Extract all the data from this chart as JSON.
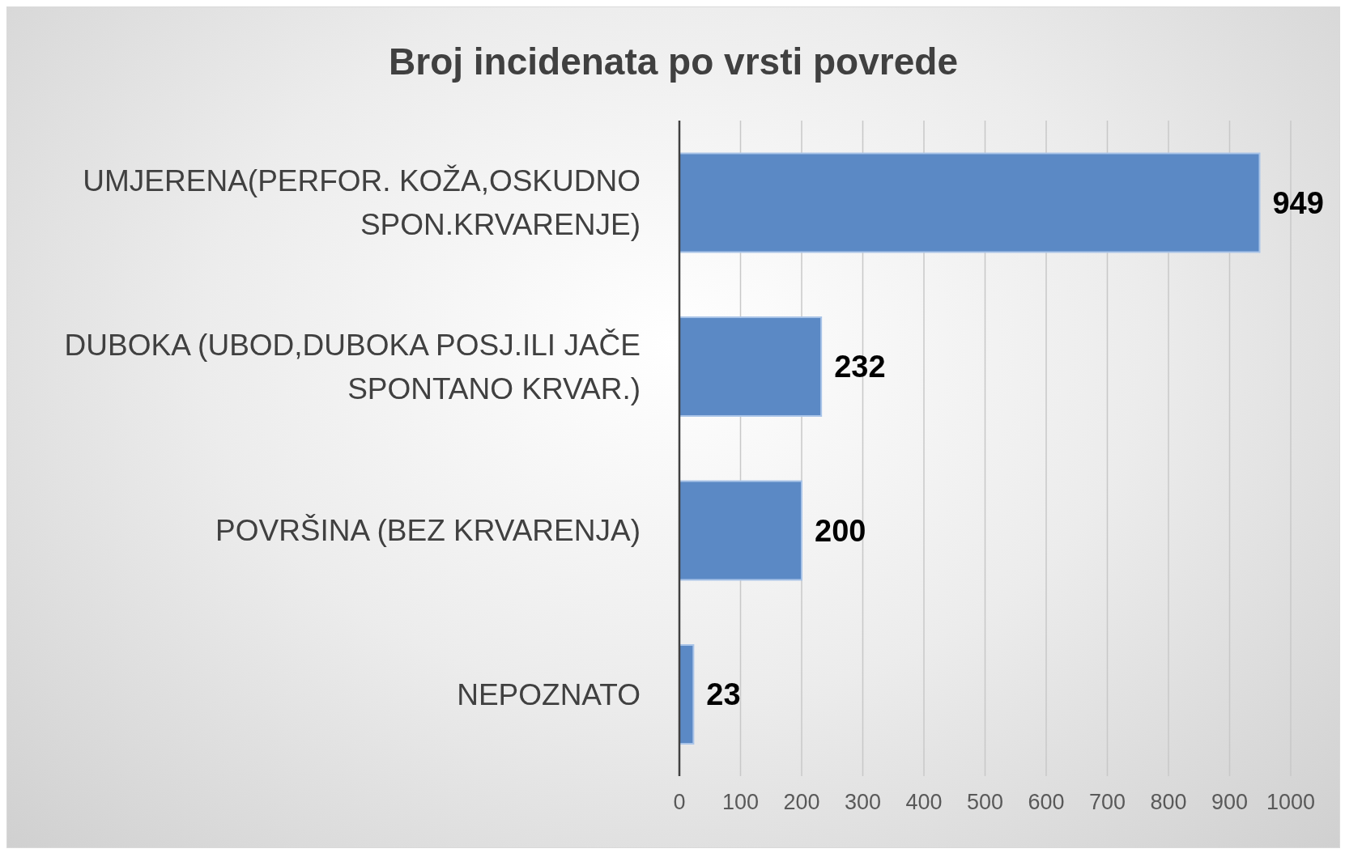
{
  "chart_data": {
    "type": "bar",
    "orientation": "horizontal",
    "title": "Broj incidenata po vrsti povrede",
    "categories": [
      "UMJERENA(PERFOR. KOŽA,OSKUDNO SPON.KRVARENJE)",
      "DUBOKA (UBOD,DUBOKA POSJ.ILI JAČE SPONTANO KRVAR.)",
      "POVRŠINA (BEZ KRVARENJA)",
      "NEPOZNATO"
    ],
    "values": [
      949,
      232,
      200,
      23
    ],
    "color": "#5b89c5",
    "xlim": [
      0,
      1000
    ],
    "xticks": [
      0,
      100,
      200,
      300,
      400,
      500,
      600,
      700,
      800,
      900,
      1000
    ],
    "grid": "x",
    "data_labels": true
  }
}
